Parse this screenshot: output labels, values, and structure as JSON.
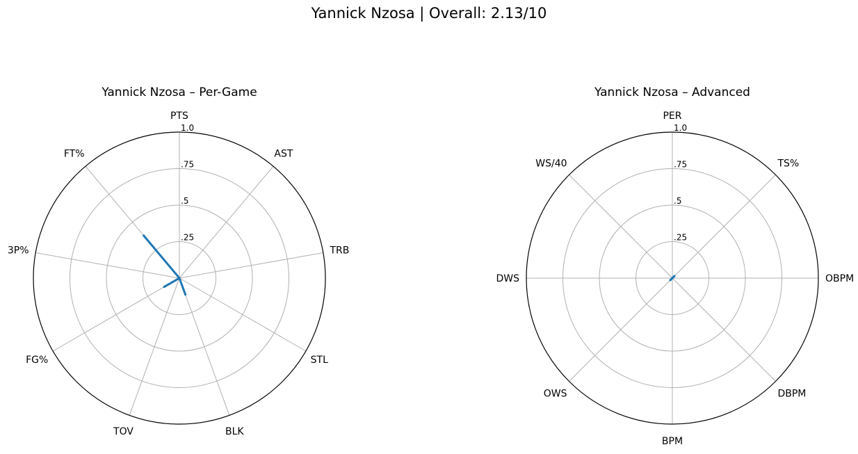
{
  "figure": {
    "title": "Yannick Nzosa | Overall: 2.13/10"
  },
  "chart_data": [
    {
      "type": "radar",
      "title": "Yannick Nzosa – Per-Game",
      "categories": [
        "PTS",
        "AST",
        "TRB",
        "STL",
        "BLK",
        "TOV",
        "FG%",
        "3P%",
        "FT%"
      ],
      "values": [
        0.0,
        0.0,
        0.0,
        0.0,
        0.12,
        0.0,
        0.12,
        0.0,
        0.38
      ],
      "rlim": [
        0,
        1.0
      ],
      "rticks": [
        {
          "value": 0.25,
          "label": ".25"
        },
        {
          "value": 0.5,
          "label": ".5"
        },
        {
          "value": 0.75,
          "label": ".75"
        },
        {
          "value": 1.0,
          "label": "1.0"
        }
      ],
      "grid": true,
      "series_color": "#1f77b4"
    },
    {
      "type": "radar",
      "title": "Yannick Nzosa – Advanced",
      "categories": [
        "PER",
        "TS%",
        "OBPM",
        "DBPM",
        "BPM",
        "OWS",
        "DWS",
        "WS/40"
      ],
      "values": [
        0.0,
        0.02,
        0.0,
        0.0,
        0.0,
        0.02,
        0.0,
        0.0
      ],
      "rlim": [
        0,
        1.0
      ],
      "rticks": [
        {
          "value": 0.25,
          "label": ".25"
        },
        {
          "value": 0.5,
          "label": ".5"
        },
        {
          "value": 0.75,
          "label": ".75"
        },
        {
          "value": 1.0,
          "label": "1.0"
        }
      ],
      "grid": true,
      "series_color": "#1f77b4"
    }
  ]
}
